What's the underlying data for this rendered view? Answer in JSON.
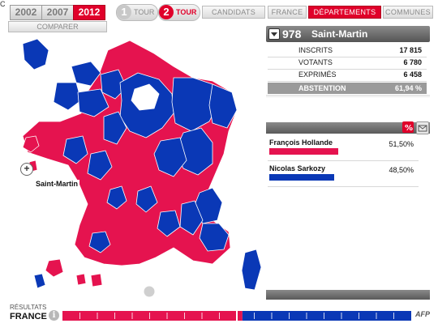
{
  "corner_mark": "C",
  "years": [
    {
      "label": "2002",
      "active": false
    },
    {
      "label": "2007",
      "active": false
    },
    {
      "label": "2012",
      "active": true
    }
  ],
  "tours": [
    {
      "num": "1",
      "label": "TOUR",
      "active": false
    },
    {
      "num": "2",
      "label": "TOUR",
      "active": true
    }
  ],
  "nav": [
    {
      "label": "CANDIDATS",
      "active": false
    },
    {
      "label": "FRANCE",
      "active": false
    },
    {
      "label": "DÉPARTEMENTS",
      "active": true
    },
    {
      "label": "COMMUNES",
      "active": false
    }
  ],
  "compare_label": "COMPARER",
  "selection": {
    "code": "978",
    "name": "Saint-Martin",
    "stats": [
      {
        "label": "INSCRITS",
        "value": "17 815"
      },
      {
        "label": "VOTANTS",
        "value": "6 780"
      },
      {
        "label": "EXPRIMÉS",
        "value": "6 458"
      }
    ],
    "abstention": {
      "label": "ABSTENTION",
      "value": "61,94 %"
    }
  },
  "candidates": [
    {
      "name": "François Hollande",
      "percent": "51,50%",
      "share": 51.5,
      "color": "#e5134f"
    },
    {
      "name": "Nicolas Sarkozy",
      "percent": "48,50%",
      "share": 48.5,
      "color": "#0a38b6"
    }
  ],
  "map": {
    "hover_label": "Saint-Martin",
    "colors": {
      "left": "#e5134f",
      "right": "#0a38b6",
      "border": "#ffffff"
    }
  },
  "bottom": {
    "results_label": "RÉSULTATS",
    "scope": "FRANCE",
    "info_icon": "i",
    "national_left_share": 51.6,
    "brand": "AFP"
  }
}
